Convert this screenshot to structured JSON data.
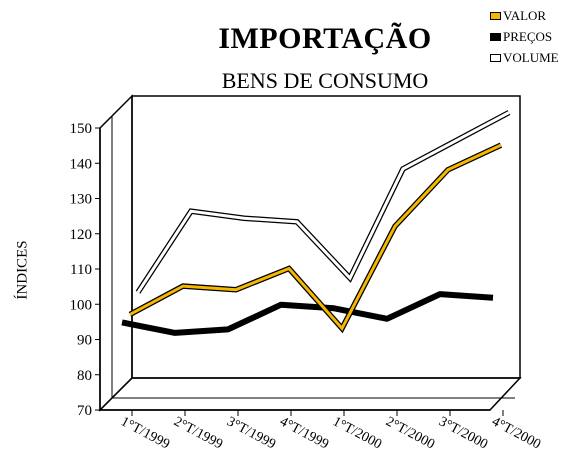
{
  "chart_data": {
    "type": "line",
    "title": "IMPORTAÇÃO",
    "subtitle": "BENS DE CONSUMO",
    "ylabel": "ÍNDICES",
    "xlabel": "",
    "ylim": [
      70,
      150
    ],
    "yticks": [
      "70",
      "80",
      "90",
      "100",
      "110",
      "120",
      "130",
      "140",
      "150"
    ],
    "categories": [
      "1°T/1999",
      "2°T/1999",
      "3°T/1999",
      "4°T/1999",
      "1°T/2000",
      "2°T/2000",
      "3°T/2000",
      "4°T/2000"
    ],
    "series": [
      {
        "name": "VALOR",
        "color": "#f5b800",
        "values": [
          96,
          104,
          103,
          109,
          92,
          121,
          137,
          144
        ]
      },
      {
        "name": "PREÇOS",
        "color": "#000000",
        "values": [
          96,
          93,
          94,
          101,
          100,
          97,
          104,
          103
        ]
      },
      {
        "name": "VOLUME",
        "color": "#ffffff",
        "values": [
          100,
          123,
          121,
          120,
          104,
          135,
          143,
          151
        ]
      }
    ],
    "legend_position": "top-right",
    "grid": false
  }
}
